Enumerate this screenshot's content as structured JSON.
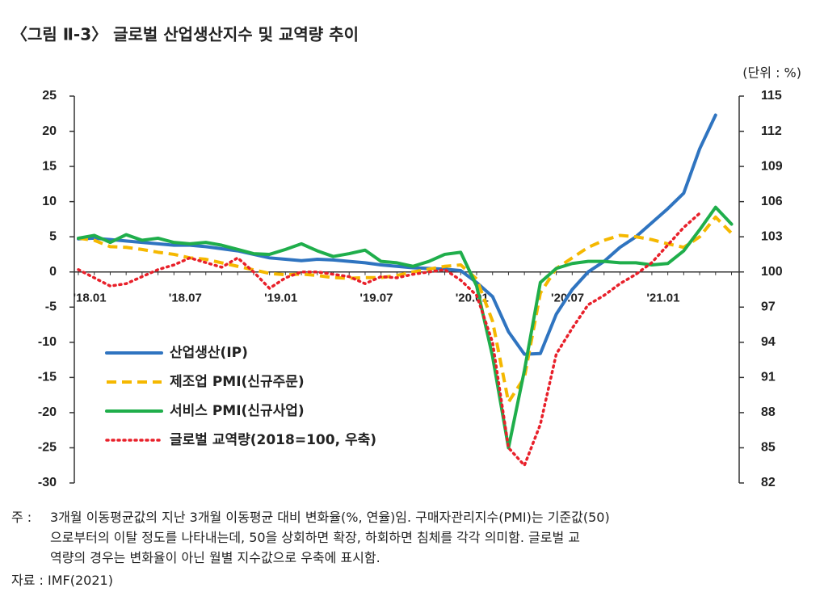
{
  "chart_data": {
    "type": "line",
    "title": "〈그림 Ⅱ-3〉 글로벌 산업생산지수 및 교역량 추이",
    "unit": "(단위 : %)",
    "categories": [
      "'18.01",
      null,
      null,
      null,
      null,
      null,
      "'18.07",
      null,
      null,
      null,
      null,
      null,
      "'19.01",
      null,
      null,
      null,
      null,
      null,
      "'19.07",
      null,
      null,
      null,
      null,
      null,
      "'20.01",
      null,
      null,
      null,
      null,
      null,
      "'20.07",
      null,
      null,
      null,
      null,
      null,
      "'21.01",
      null,
      null,
      null,
      null,
      null
    ],
    "ylim": [
      -30,
      25
    ],
    "yticks": [
      -30,
      -25,
      -20,
      -15,
      -10,
      -5,
      0,
      5,
      10,
      15,
      20,
      25
    ],
    "y2lim": [
      82,
      115
    ],
    "y2ticks": [
      82,
      85,
      88,
      91,
      94,
      97,
      100,
      103,
      106,
      109,
      112,
      115
    ],
    "series": [
      {
        "name": "산업생산(IP)",
        "color": "#2f74c0",
        "dash": "solid",
        "values": [
          4.7,
          4.8,
          4.6,
          4.4,
          4.2,
          4.0,
          3.8,
          3.8,
          3.6,
          3.3,
          3.0,
          2.5,
          2.0,
          1.8,
          1.6,
          1.8,
          1.7,
          1.5,
          1.3,
          1.0,
          0.8,
          0.6,
          0.5,
          0.4,
          0.2,
          -1.5,
          -3.5,
          -8.5,
          -11.7,
          -11.6,
          -6,
          -2.5,
          0,
          1.5,
          3.5,
          5,
          7,
          9,
          11.2,
          17.5,
          22.3,
          null
        ]
      },
      {
        "name": "제조업 PMI(신규주문)",
        "color": "#f5b800",
        "dash": "dashed",
        "values": [
          4.8,
          4.5,
          3.6,
          3.5,
          3.2,
          2.8,
          2.5,
          2.0,
          1.8,
          1.3,
          0.8,
          0.3,
          -0.2,
          -0.4,
          -0.3,
          -0.5,
          -0.8,
          -0.9,
          -0.8,
          -0.8,
          -0.5,
          0,
          0.4,
          0.8,
          1,
          -1,
          -7,
          -18.5,
          -15,
          -3,
          0.5,
          2,
          3.5,
          4.5,
          5.2,
          5,
          4.6,
          4.0,
          3.5,
          5,
          7.8,
          5.5
        ]
      },
      {
        "name": "서비스 PMI(신규사업)",
        "color": "#1fae4b",
        "dash": "solid",
        "values": [
          4.8,
          5.2,
          4.2,
          5.3,
          4.5,
          4.8,
          4.2,
          4.0,
          4.2,
          3.8,
          3.2,
          2.6,
          2.5,
          3.2,
          4.0,
          3.0,
          2.2,
          2.6,
          3.1,
          1.5,
          1.3,
          0.8,
          1.5,
          2.5,
          2.8,
          -2,
          -12,
          -25,
          -14,
          -1.5,
          0.5,
          1.2,
          1.5,
          1.5,
          1.3,
          1.3,
          1.0,
          1.2,
          3,
          6,
          9.2,
          6.8
        ]
      },
      {
        "name": "글로벌 교역량(2018=100, 우축)",
        "color": "#e8202a",
        "dash": "dotted",
        "axis": "y2",
        "values": [
          100.2,
          99.5,
          98.8,
          99,
          99.6,
          100.2,
          100.6,
          101.2,
          100.8,
          100.4,
          101.2,
          100,
          98.6,
          99.5,
          100,
          100,
          99.8,
          99.6,
          99,
          99.6,
          99.5,
          99.8,
          100,
          100.2,
          99.3,
          98,
          94,
          85,
          83.5,
          87,
          93,
          95.2,
          97.2,
          98,
          99,
          99.8,
          100.8,
          102.3,
          103.8,
          105,
          null,
          null
        ]
      }
    ]
  },
  "notes": {
    "label": "주 :",
    "lines": [
      "3개월 이동평균값의 지난 3개월 이동평균 대비 변화율(%, 연율)임. 구매자관리지수(PMI)는 기준값(50)",
      "으로부터의 이탈 정도를 나타내는데, 50을 상회하면 확장, 하회하면 침체를 각각 의미함. 글로벌 교",
      "역량의 경우는 변화율이 아닌 월별 지수값으로 우축에 표시함."
    ],
    "source": "자료 : IMF(2021)"
  }
}
